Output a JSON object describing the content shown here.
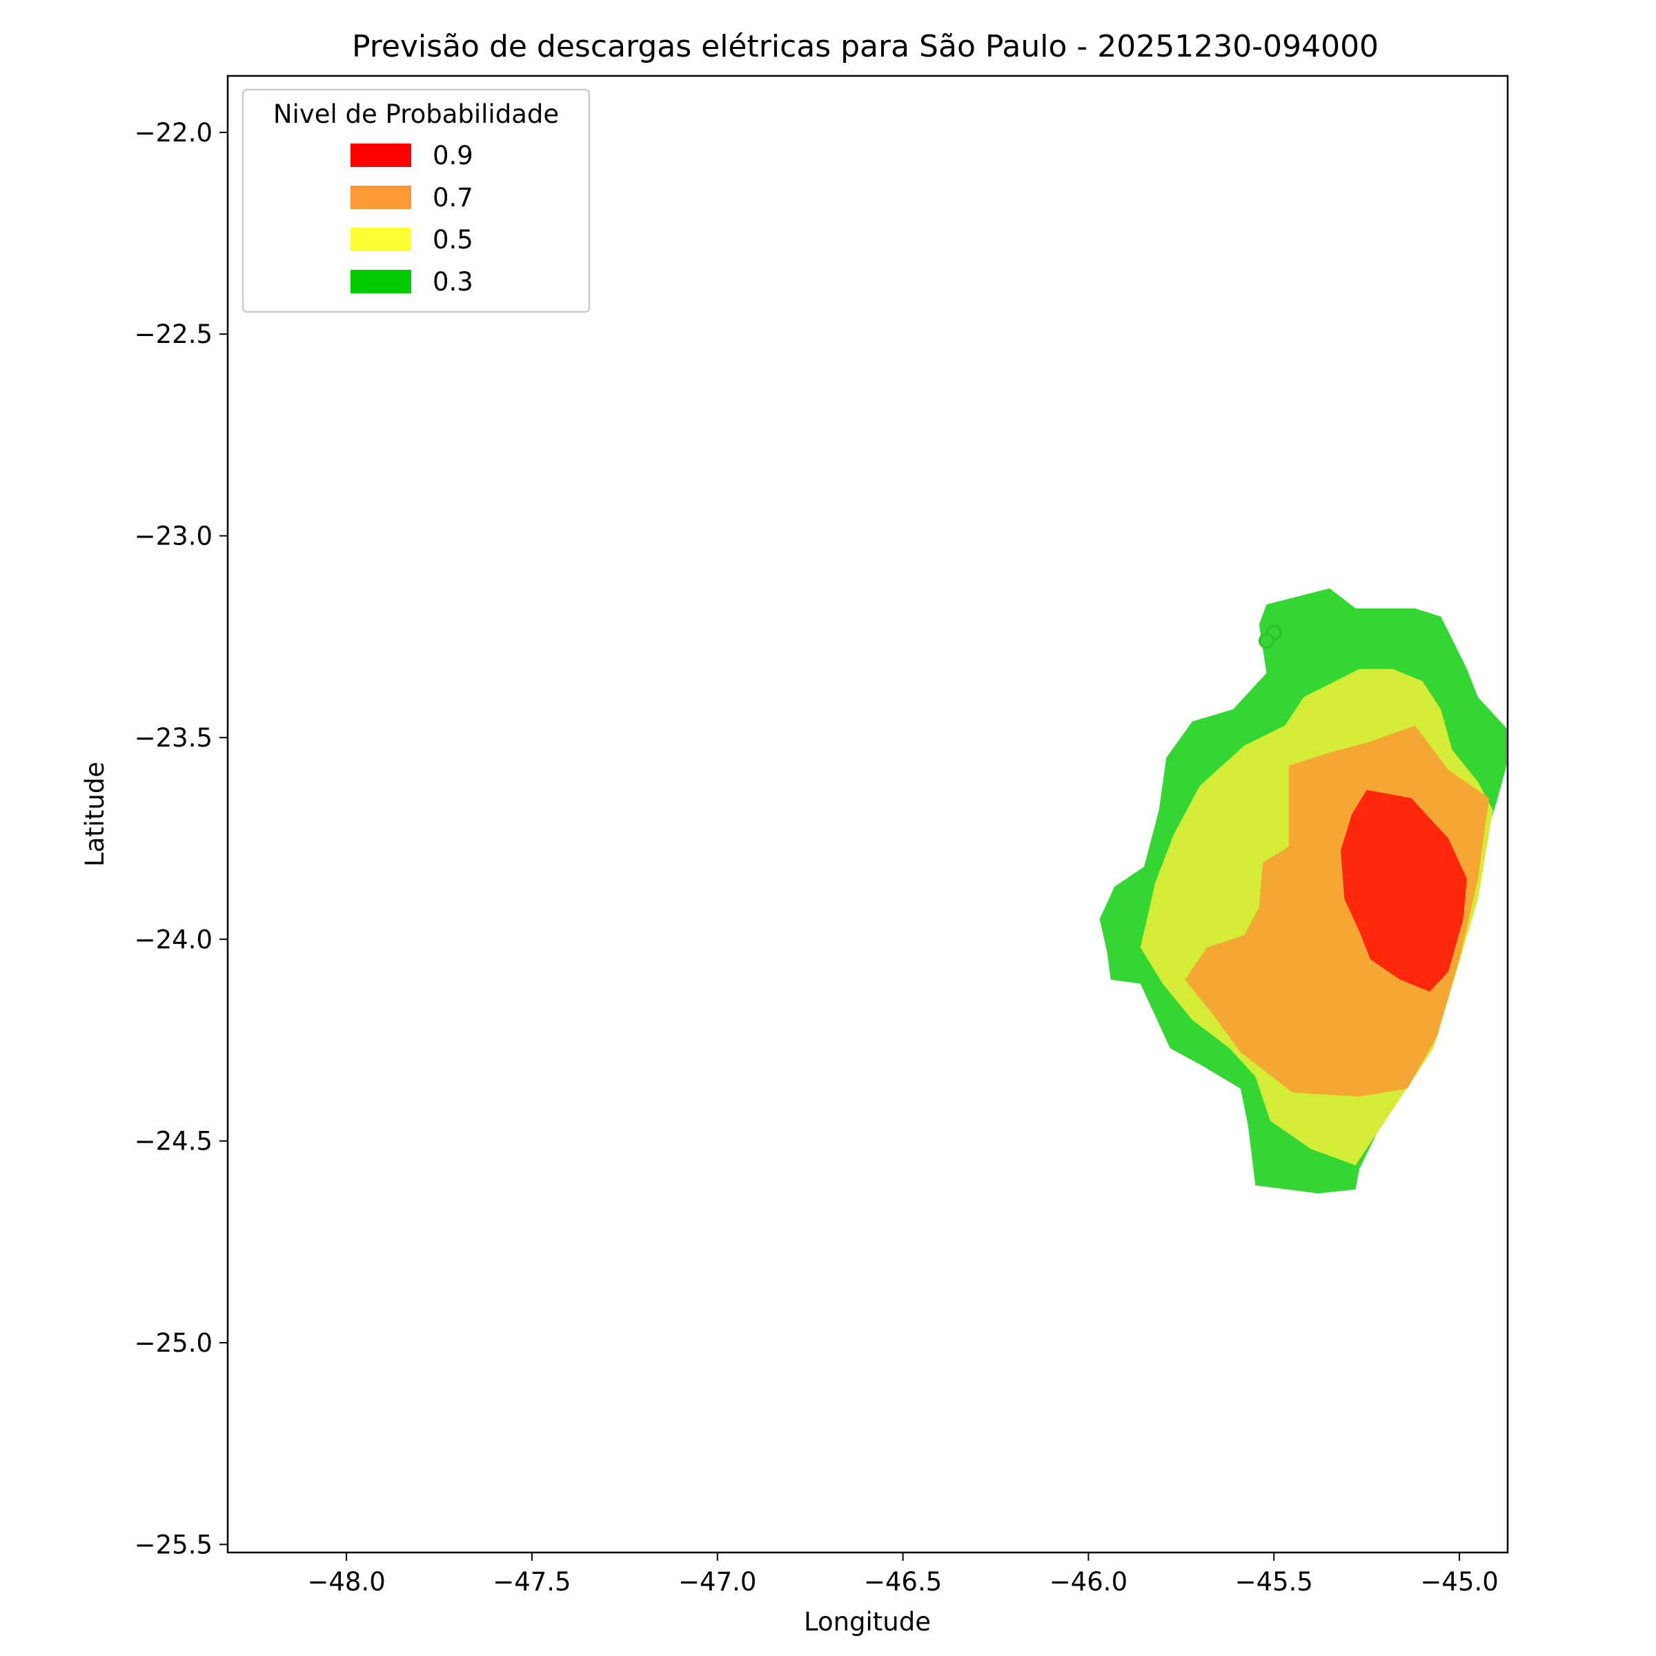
{
  "chart_data": {
    "type": "map-contour",
    "title": "Previsão de descargas elétricas para São Paulo - 20251230-094000",
    "xlabel": "Longitude",
    "ylabel": "Latitude",
    "xlim": [
      -48.32,
      -44.87
    ],
    "ylim": [
      -25.52,
      -21.86
    ],
    "xticks": [
      -48.0,
      -47.5,
      -47.0,
      -46.5,
      -46.0,
      -45.5,
      -45.0
    ],
    "xtick_labels": [
      "−48.0",
      "−47.5",
      "−47.0",
      "−46.5",
      "−46.0",
      "−45.5",
      "−45.0"
    ],
    "yticks": [
      -22.0,
      -22.5,
      -23.0,
      -23.5,
      -24.0,
      -24.5,
      -25.0,
      -25.5
    ],
    "ytick_labels": [
      "−22.0",
      "−22.5",
      "−23.0",
      "−23.5",
      "−24.0",
      "−24.5",
      "−25.0",
      "−25.5"
    ],
    "grid": false,
    "legend": {
      "title": "Nivel de Probabilidade",
      "placement": "top-left",
      "entries": [
        {
          "label": "0.9",
          "color": "#ff0000"
        },
        {
          "label": "0.7",
          "color": "#ff9933"
        },
        {
          "label": "0.5",
          "color": "#ffff33"
        },
        {
          "label": "0.3",
          "color": "#00cc00"
        }
      ]
    },
    "series": [
      {
        "level": 0.3,
        "color": "#00cc00",
        "polygon": [
          [
            -45.52,
            -23.17
          ],
          [
            -45.35,
            -23.13
          ],
          [
            -45.28,
            -23.18
          ],
          [
            -45.12,
            -23.18
          ],
          [
            -45.05,
            -23.2
          ],
          [
            -44.98,
            -23.33
          ],
          [
            -44.95,
            -23.4
          ],
          [
            -44.87,
            -23.48
          ],
          [
            -44.87,
            -23.56
          ],
          [
            -44.9,
            -23.66
          ],
          [
            -45.1,
            -24.25
          ],
          [
            -45.27,
            -24.57
          ],
          [
            -45.28,
            -24.62
          ],
          [
            -45.38,
            -24.63
          ],
          [
            -45.55,
            -24.61
          ],
          [
            -45.57,
            -24.46
          ],
          [
            -45.59,
            -24.37
          ],
          [
            -45.7,
            -24.31
          ],
          [
            -45.78,
            -24.27
          ],
          [
            -45.81,
            -24.21
          ],
          [
            -45.86,
            -24.11
          ],
          [
            -45.94,
            -24.1
          ],
          [
            -45.95,
            -24.03
          ],
          [
            -45.97,
            -23.95
          ],
          [
            -45.93,
            -23.87
          ],
          [
            -45.85,
            -23.82
          ],
          [
            -45.81,
            -23.68
          ],
          [
            -45.79,
            -23.55
          ],
          [
            -45.72,
            -23.46
          ],
          [
            -45.61,
            -23.43
          ],
          [
            -45.52,
            -23.34
          ],
          [
            -45.54,
            -23.22
          ]
        ]
      },
      {
        "level": 0.5,
        "color": "#ffff33",
        "polygon": [
          [
            -45.42,
            -23.4
          ],
          [
            -45.27,
            -23.33
          ],
          [
            -45.18,
            -23.33
          ],
          [
            -45.1,
            -23.36
          ],
          [
            -45.05,
            -23.43
          ],
          [
            -45.02,
            -23.53
          ],
          [
            -44.95,
            -23.61
          ],
          [
            -44.91,
            -23.68
          ],
          [
            -44.95,
            -23.9
          ],
          [
            -45.07,
            -24.27
          ],
          [
            -45.28,
            -24.56
          ],
          [
            -45.4,
            -24.52
          ],
          [
            -45.51,
            -24.45
          ],
          [
            -45.55,
            -24.34
          ],
          [
            -45.62,
            -24.27
          ],
          [
            -45.72,
            -24.2
          ],
          [
            -45.8,
            -24.11
          ],
          [
            -45.86,
            -24.02
          ],
          [
            -45.82,
            -23.86
          ],
          [
            -45.77,
            -23.74
          ],
          [
            -45.7,
            -23.62
          ],
          [
            -45.58,
            -23.52
          ],
          [
            -45.47,
            -23.47
          ]
        ]
      },
      {
        "level": 0.7,
        "color": "#ff9933",
        "polygon": [
          [
            -45.46,
            -23.57
          ],
          [
            -45.36,
            -23.54
          ],
          [
            -45.24,
            -23.51
          ],
          [
            -45.12,
            -23.47
          ],
          [
            -45.03,
            -23.58
          ],
          [
            -44.92,
            -23.65
          ],
          [
            -44.95,
            -23.85
          ],
          [
            -45.0,
            -24.05
          ],
          [
            -45.06,
            -24.24
          ],
          [
            -45.14,
            -24.37
          ],
          [
            -45.27,
            -24.39
          ],
          [
            -45.45,
            -24.38
          ],
          [
            -45.59,
            -24.28
          ],
          [
            -45.67,
            -24.18
          ],
          [
            -45.74,
            -24.1
          ],
          [
            -45.68,
            -24.02
          ],
          [
            -45.58,
            -23.99
          ],
          [
            -45.54,
            -23.92
          ],
          [
            -45.53,
            -23.81
          ],
          [
            -45.46,
            -23.77
          ]
        ]
      },
      {
        "level": 0.9,
        "color": "#ff0000",
        "polygon": [
          [
            -45.25,
            -23.63
          ],
          [
            -45.13,
            -23.65
          ],
          [
            -45.03,
            -23.75
          ],
          [
            -44.98,
            -23.85
          ],
          [
            -44.99,
            -23.95
          ],
          [
            -45.03,
            -24.08
          ],
          [
            -45.08,
            -24.13
          ],
          [
            -45.16,
            -24.1
          ],
          [
            -45.24,
            -24.05
          ],
          [
            -45.27,
            -23.98
          ],
          [
            -45.31,
            -23.9
          ],
          [
            -45.32,
            -23.78
          ],
          [
            -45.29,
            -23.69
          ]
        ]
      }
    ],
    "points": [
      {
        "lon": -45.5,
        "lat": -23.24,
        "level": 0.3
      },
      {
        "lon": -45.52,
        "lat": -23.26,
        "level": 0.3
      }
    ]
  }
}
